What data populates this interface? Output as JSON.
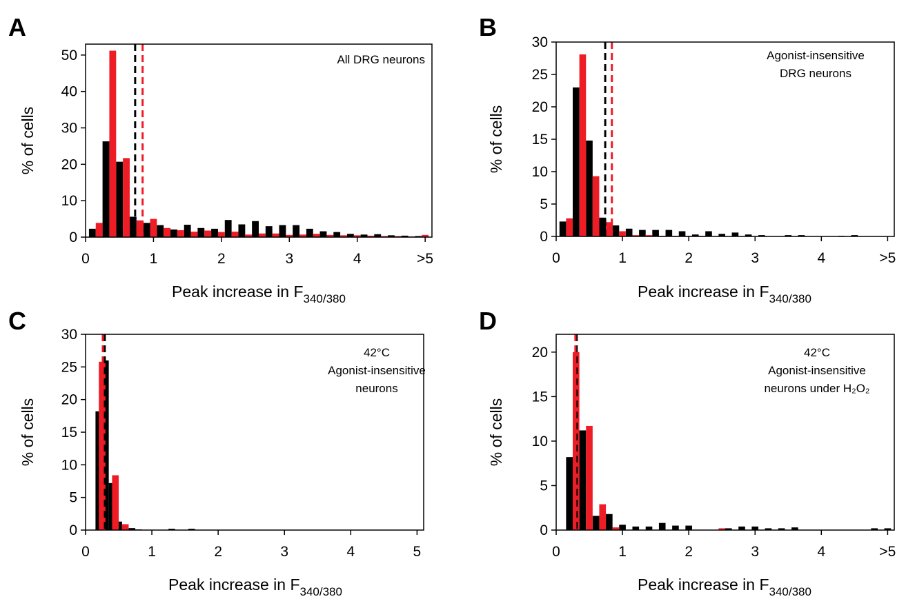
{
  "colors": {
    "series_black": "#000000",
    "series_red": "#ee1c25"
  },
  "chart_data": [
    {
      "panel": "A",
      "type": "bar",
      "title": "",
      "annotation": [
        "All DRG neurons"
      ],
      "xlabel": "Peak increase in F",
      "xlabel_sub": "340/380",
      "ylabel": "% of cells",
      "xlim": [
        0,
        5.1
      ],
      "ylim": [
        0,
        53
      ],
      "x_ticks": [
        0,
        1,
        2,
        3,
        4,
        5
      ],
      "x_tick_labels": [
        "0",
        "1",
        "2",
        "3",
        "4",
        ">5"
      ],
      "y_ticks": [
        0,
        10,
        20,
        30,
        40,
        50
      ],
      "bin_width": 0.1,
      "series": [
        {
          "color": "#000000",
          "x": [
            0.1,
            0.3,
            0.5,
            0.7,
            0.9,
            1.1,
            1.3,
            1.5,
            1.7,
            1.9,
            2.1,
            2.3,
            2.5,
            2.7,
            2.9,
            3.1,
            3.3,
            3.5,
            3.7,
            3.9,
            4.1,
            4.3,
            4.5,
            4.7,
            4.9
          ],
          "values": [
            2.3,
            26.3,
            20.7,
            5.6,
            3.9,
            3.3,
            2.1,
            3.4,
            2.5,
            2.3,
            4.7,
            3.5,
            4.4,
            3.0,
            3.3,
            3.3,
            2.3,
            1.6,
            1.4,
            0.9,
            0.7,
            0.8,
            0.5,
            0.4,
            0.3
          ]
        },
        {
          "color": "#ee1c25",
          "x": [
            0.2,
            0.4,
            0.6,
            0.8,
            1.0,
            1.2,
            1.4,
            1.6,
            1.8,
            2.0,
            2.2,
            2.4,
            2.6,
            2.8,
            3.0,
            3.2,
            3.4,
            3.6,
            3.8,
            4.0,
            4.2,
            4.4,
            4.6,
            4.8,
            5.0
          ],
          "values": [
            3.9,
            51.2,
            21.7,
            4.6,
            5.0,
            2.5,
            1.9,
            1.5,
            1.8,
            1.4,
            1.5,
            0.7,
            1.0,
            1.0,
            0.6,
            0.7,
            0.9,
            0.6,
            0.5,
            0.5,
            0.4,
            0.3,
            0.3,
            0.2,
            0.6
          ]
        }
      ],
      "vlines": [
        {
          "x": 0.73,
          "color": "#000000"
        },
        {
          "x": 0.84,
          "color": "#ee1c25"
        }
      ]
    },
    {
      "panel": "B",
      "type": "bar",
      "title": "",
      "annotation": [
        "Agonist-insensitive",
        "DRG neurons"
      ],
      "xlabel": "Peak increase in F",
      "xlabel_sub": "340/380",
      "ylabel": "% of cells",
      "xlim": [
        0,
        5.1
      ],
      "ylim": [
        0,
        30
      ],
      "x_ticks": [
        0,
        1,
        2,
        3,
        4,
        5
      ],
      "x_tick_labels": [
        "0",
        "1",
        "2",
        "3",
        "4",
        ">5"
      ],
      "y_ticks": [
        0,
        5,
        10,
        15,
        20,
        25,
        30
      ],
      "bin_width": 0.1,
      "series": [
        {
          "color": "#000000",
          "x": [
            0.1,
            0.3,
            0.5,
            0.7,
            0.9,
            1.1,
            1.3,
            1.5,
            1.7,
            1.9,
            2.1,
            2.3,
            2.5,
            2.7,
            2.9,
            3.1,
            3.5,
            3.7,
            4.3,
            4.5
          ],
          "values": [
            2.3,
            23.0,
            14.8,
            2.9,
            1.7,
            1.2,
            1.0,
            1.0,
            1.0,
            0.8,
            0.3,
            0.8,
            0.4,
            0.6,
            0.3,
            0.2,
            0.2,
            0.2,
            0.1,
            0.2
          ]
        },
        {
          "color": "#ee1c25",
          "x": [
            0.2,
            0.4,
            0.6,
            0.8,
            1.0,
            1.2,
            1.4,
            1.6,
            1.8,
            2.0,
            2.2
          ],
          "values": [
            2.8,
            28.1,
            9.3,
            2.2,
            0.8,
            0.2,
            0.2,
            0.1,
            0.1,
            0.1,
            0.1
          ]
        }
      ],
      "vlines": [
        {
          "x": 0.74,
          "color": "#000000"
        },
        {
          "x": 0.84,
          "color": "#ee1c25"
        }
      ]
    },
    {
      "panel": "C",
      "type": "bar",
      "title": "",
      "annotation": [
        "42°C",
        "Agonist-insensitive",
        "neurons"
      ],
      "xlabel": "Peak increase in F",
      "xlabel_sub": "340/380",
      "ylabel": "% of cells",
      "xlim": [
        0,
        5.1
      ],
      "ylim": [
        0,
        30
      ],
      "x_ticks": [
        0,
        1,
        2,
        3,
        4,
        5
      ],
      "x_tick_labels": [
        "0",
        "1",
        "2",
        "3",
        "4",
        "5"
      ],
      "y_ticks": [
        0,
        5,
        10,
        15,
        20,
        25,
        30
      ],
      "bin_width": 0.1,
      "series": [
        {
          "color": "#000000",
          "x": [
            0.2,
            0.3,
            0.4,
            0.5,
            0.7,
            0.8,
            1.3,
            1.6
          ],
          "values": [
            18.2,
            26.0,
            7.2,
            1.3,
            0.3,
            0.1,
            0.2,
            0.2
          ]
        },
        {
          "color": "#ee1c25",
          "x": [
            0.25,
            0.45,
            0.6
          ],
          "values": [
            25.8,
            8.4,
            0.9
          ]
        }
      ],
      "vlines": [
        {
          "x": 0.29,
          "color": "#000000"
        },
        {
          "x": 0.26,
          "color": "#ee1c25"
        }
      ]
    },
    {
      "panel": "D",
      "type": "bar",
      "title": "",
      "annotation": [
        "42°C",
        "Agonist-insensitive",
        "neurons under H₂O₂"
      ],
      "xlabel": "Peak increase in F",
      "xlabel_sub": "340/380",
      "ylabel": "% of cells",
      "xlim": [
        0,
        5.1
      ],
      "ylim": [
        0,
        22
      ],
      "x_ticks": [
        0,
        1,
        2,
        3,
        4,
        5
      ],
      "x_tick_labels": [
        "0",
        "1",
        "2",
        "3",
        "4",
        ">5"
      ],
      "y_ticks": [
        0,
        5,
        10,
        15,
        20
      ],
      "bin_width": 0.1,
      "series": [
        {
          "color": "#000000",
          "x": [
            0.2,
            0.4,
            0.6,
            0.8,
            1.0,
            1.2,
            1.4,
            1.6,
            1.8,
            2.0,
            2.6,
            2.8,
            3.0,
            3.2,
            3.4,
            3.6,
            4.8,
            5.0
          ],
          "values": [
            8.2,
            11.2,
            1.6,
            1.8,
            0.6,
            0.4,
            0.4,
            0.8,
            0.5,
            0.5,
            0.2,
            0.4,
            0.4,
            0.2,
            0.2,
            0.3,
            0.2,
            0.2
          ]
        },
        {
          "color": "#ee1c25",
          "x": [
            0.3,
            0.5,
            0.7,
            0.9,
            2.5
          ],
          "values": [
            20.0,
            11.7,
            2.9,
            0.3,
            0.2
          ]
        }
      ],
      "vlines": [
        {
          "x": 0.31,
          "color": "#000000"
        },
        {
          "x": 0.29,
          "color": "#ee1c25"
        }
      ]
    }
  ]
}
